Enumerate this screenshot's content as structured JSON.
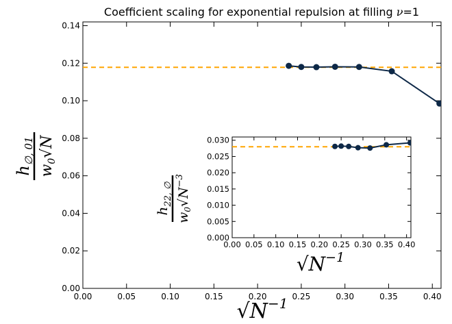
{
  "chart_data": [
    {
      "type": "line",
      "title": "Coefficient scaling for exponential repulsion at filling ν = 1",
      "xlabel": "√N⁻¹",
      "ylabel_num": "h∅,01",
      "ylabel_den": "w0√N",
      "xlim": [
        0.0,
        0.41
      ],
      "ylim": [
        0.0,
        0.142
      ],
      "xticks": [
        0.0,
        0.05,
        0.1,
        0.15,
        0.2,
        0.25,
        0.3,
        0.35,
        0.4
      ],
      "xtick_labels": [
        "0.00",
        "0.05",
        "0.10",
        "0.15",
        "0.20",
        "0.25",
        "0.30",
        "0.35",
        "0.40"
      ],
      "yticks": [
        0.0,
        0.02,
        0.04,
        0.06,
        0.08,
        0.1,
        0.12,
        0.14
      ],
      "ytick_labels": [
        "0.00",
        "0.02",
        "0.04",
        "0.06",
        "0.08",
        "0.10",
        "0.12",
        "0.14"
      ],
      "grid": false,
      "reference_line": {
        "y": 0.1178,
        "color": "#ffa500",
        "style": "dashed"
      },
      "series": [
        {
          "color": "#0d2847",
          "x": [
            0.2357,
            0.25,
            0.2673,
            0.2887,
            0.3162,
            0.3536,
            0.4082
          ],
          "y": [
            0.1186,
            0.118,
            0.1179,
            0.1181,
            0.118,
            0.1157,
            0.0985
          ]
        }
      ]
    },
    {
      "type": "line",
      "title": "",
      "xlabel": "√N⁻¹",
      "ylabel_num": "h22,∅",
      "ylabel_den": "w0√N⁻³",
      "xlim": [
        0.0,
        0.41
      ],
      "ylim": [
        0.0,
        0.031
      ],
      "xticks": [
        0.0,
        0.05,
        0.1,
        0.15,
        0.2,
        0.25,
        0.3,
        0.35,
        0.4
      ],
      "xtick_labels": [
        "0.00",
        "0.05",
        "0.10",
        "0.15",
        "0.20",
        "0.25",
        "0.30",
        "0.35",
        "0.40"
      ],
      "yticks": [
        0.0,
        0.005,
        0.01,
        0.015,
        0.02,
        0.025,
        0.03
      ],
      "ytick_labels": [
        "0.000",
        "0.005",
        "0.010",
        "0.015",
        "0.020",
        "0.025",
        "0.030"
      ],
      "grid": false,
      "reference_line": {
        "y": 0.028,
        "color": "#ffa500",
        "style": "dashed"
      },
      "series": [
        {
          "color": "#0d2847",
          "x": [
            0.2357,
            0.25,
            0.2673,
            0.2887,
            0.3162,
            0.3536,
            0.4082
          ],
          "y": [
            0.0281,
            0.0282,
            0.0281,
            0.0277,
            0.0276,
            0.0286,
            0.0292
          ]
        }
      ]
    }
  ]
}
